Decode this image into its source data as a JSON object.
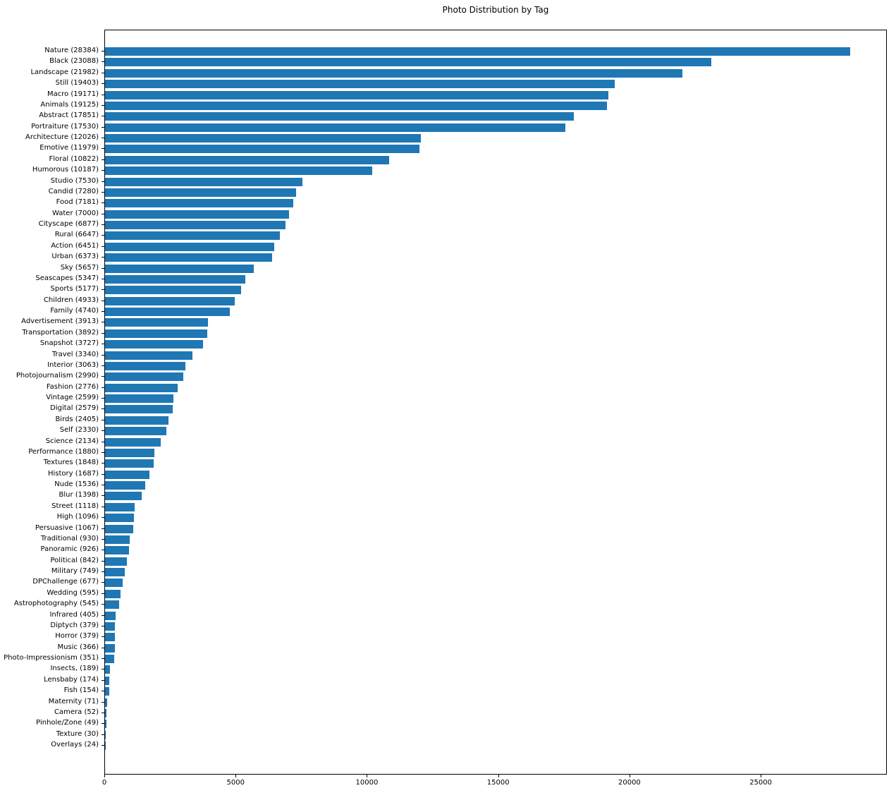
{
  "chart_data": {
    "type": "bar",
    "orientation": "horizontal",
    "title": "Photo Distribution by Tag",
    "xlabel": "",
    "ylabel": "",
    "xlim": [
      0,
      29803
    ],
    "x_ticks": [
      0,
      5000,
      10000,
      15000,
      20000,
      25000
    ],
    "bar_color": "#1f77b4",
    "grid": false,
    "legend": false,
    "categories": [
      "Nature",
      "Black",
      "Landscape",
      "Still",
      "Macro",
      "Animals",
      "Abstract",
      "Portraiture",
      "Architecture",
      "Emotive",
      "Floral",
      "Humorous",
      "Studio",
      "Candid",
      "Food",
      "Water",
      "Cityscape",
      "Rural",
      "Action",
      "Urban",
      "Sky",
      "Seascapes",
      "Sports",
      "Children",
      "Family",
      "Advertisement",
      "Transportation",
      "Snapshot",
      "Travel",
      "Interior",
      "Photojournalism",
      "Fashion",
      "Vintage",
      "Digital",
      "Birds",
      "Self",
      "Science",
      "Performance",
      "Textures",
      "History",
      "Nude",
      "Blur",
      "Street",
      "High",
      "Persuasive",
      "Traditional",
      "Panoramic",
      "Political",
      "Military",
      "DPChallenge",
      "Wedding",
      "Astrophotography",
      "Infrared",
      "Diptych",
      "Horror",
      "Music",
      "Photo-Impressionism",
      "Insects,",
      "Lensbaby",
      "Fish",
      "Maternity",
      "Camera",
      "Pinhole/Zone",
      "Texture",
      "Overlays"
    ],
    "values": [
      28384,
      23088,
      21982,
      19403,
      19171,
      19125,
      17851,
      17530,
      12026,
      11979,
      10822,
      10187,
      7530,
      7280,
      7181,
      7000,
      6877,
      6647,
      6451,
      6373,
      5657,
      5347,
      5177,
      4933,
      4740,
      3913,
      3892,
      3727,
      3340,
      3063,
      2990,
      2776,
      2599,
      2579,
      2405,
      2330,
      2134,
      1880,
      1848,
      1687,
      1536,
      1398,
      1118,
      1096,
      1067,
      930,
      926,
      842,
      749,
      677,
      595,
      545,
      405,
      379,
      379,
      366,
      351,
      189,
      174,
      154,
      71,
      52,
      49,
      30,
      24
    ],
    "tick_label_format": "{category} ({value})"
  }
}
